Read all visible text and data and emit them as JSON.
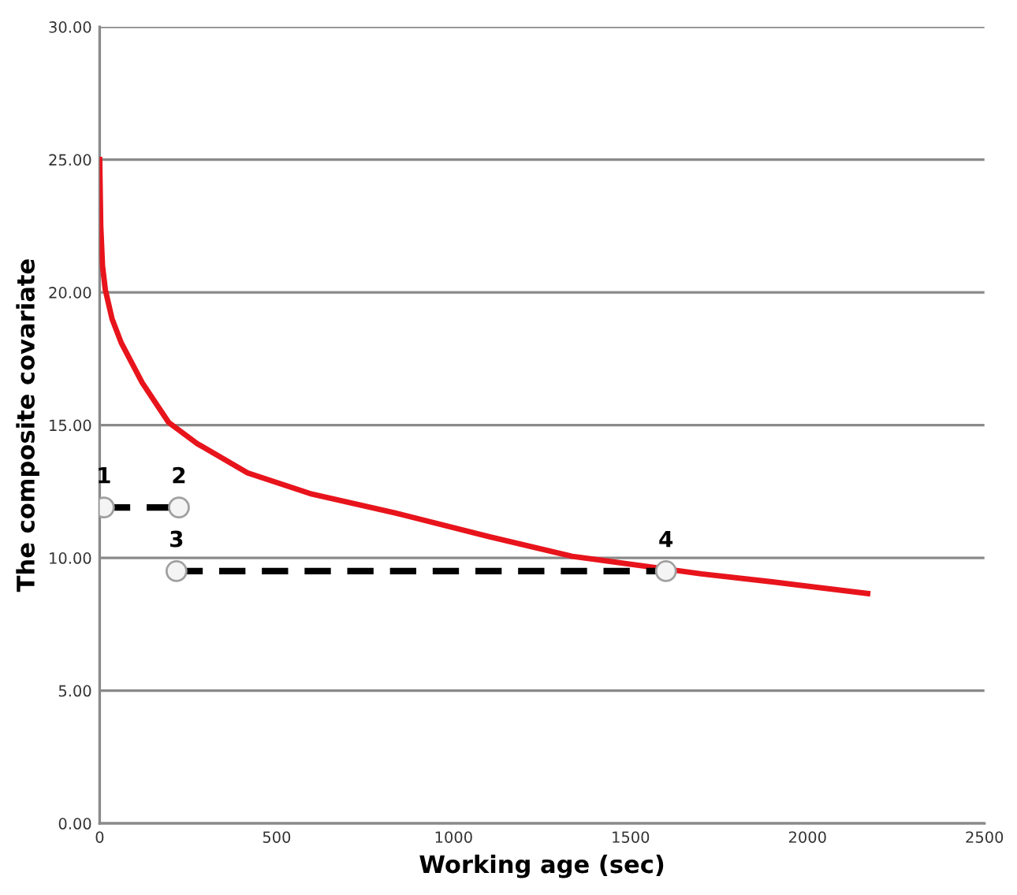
{
  "chart_data": {
    "type": "line",
    "xlabel": "Working age (sec)",
    "ylabel": "The composite covariate",
    "xlim": [
      0,
      2500
    ],
    "xticks": [
      0,
      500,
      1000,
      1500,
      2000,
      2500
    ],
    "ylim": [
      0,
      30
    ],
    "yticks": [
      {
        "value": 0,
        "label": "0.00"
      },
      {
        "value": 5,
        "label": "5.00"
      },
      {
        "value": 10,
        "label": "10.00"
      },
      {
        "value": 15,
        "label": "15.00"
      },
      {
        "value": 20,
        "label": "20.00"
      },
      {
        "value": 25,
        "label": "25.00"
      },
      {
        "value": 30,
        "label": "30.00"
      }
    ],
    "grid": "y",
    "series": [
      {
        "color": "#e8141c",
        "line_style": "solid",
        "marker": "none",
        "x": [
          0,
          3,
          8,
          16,
          35,
          61,
          120,
          195,
          276,
          418,
          600,
          833,
          1100,
          1335,
          1700,
          1900,
          2170
        ],
        "values": [
          25,
          22.5,
          21.0,
          20.1,
          19.0,
          18.1,
          16.6,
          15.1,
          14.3,
          13.2,
          12.4,
          11.7,
          10.8,
          10.06,
          9.4,
          9.1,
          8.66
        ]
      },
      {
        "color": "#000000",
        "line_style": "dashed",
        "marker": "circle",
        "x": [
          12,
          224
        ],
        "values": [
          11.9,
          11.9
        ]
      },
      {
        "color": "#000000",
        "line_style": "dashed",
        "marker": "circle",
        "x": [
          217,
          1600
        ],
        "values": [
          9.5,
          9.5
        ]
      }
    ],
    "annotations": [
      {
        "text": "1",
        "x": 12,
        "y": 11.9
      },
      {
        "text": "2",
        "x": 224,
        "y": 11.9
      },
      {
        "text": "3",
        "x": 217,
        "y": 9.5
      },
      {
        "text": "4",
        "x": 1600,
        "y": 9.5
      }
    ]
  }
}
